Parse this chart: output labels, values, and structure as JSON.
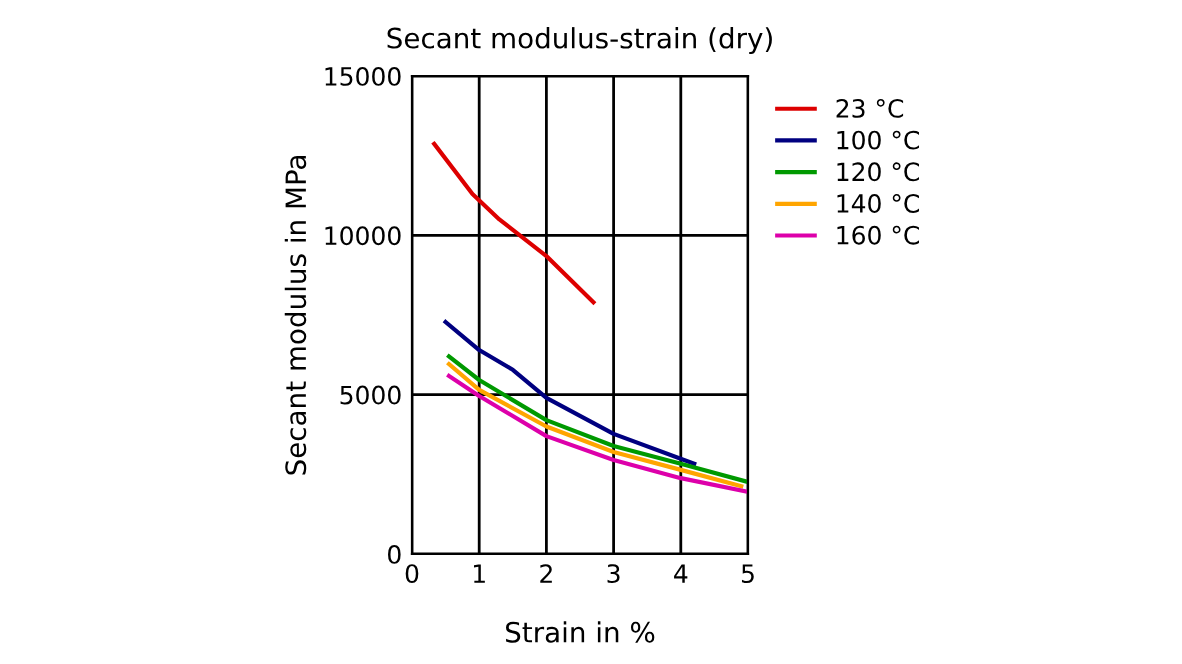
{
  "chart_data": {
    "type": "line",
    "title": "Secant modulus-strain (dry)",
    "xlabel": "Strain in %",
    "ylabel": "Secant modulus in MPa",
    "xlim": [
      0,
      5
    ],
    "ylim": [
      0,
      15000
    ],
    "xticks": [
      0,
      1,
      2,
      3,
      4,
      5
    ],
    "yticks": [
      0,
      5000,
      10000,
      15000
    ],
    "grid": true,
    "legend": "right",
    "marker": "none",
    "line_style": "solid",
    "series": [
      {
        "name": "23 °C",
        "color": "#dd0000",
        "x": [
          0.33,
          0.9,
          1.3,
          2.0,
          2.7
        ],
        "values": [
          12870,
          11300,
          10500,
          9350,
          7900
        ]
      },
      {
        "name": "100 °C",
        "color": "#000080",
        "x": [
          0.5,
          1.0,
          1.5,
          2.0,
          3.0,
          4.2
        ],
        "values": [
          7280,
          6400,
          5780,
          4900,
          3770,
          2830
        ]
      },
      {
        "name": "120 °C",
        "color": "#009900",
        "x": [
          0.55,
          1.0,
          2.0,
          3.0,
          4.0,
          5.0
        ],
        "values": [
          6200,
          5460,
          4200,
          3390,
          2830,
          2260
        ]
      },
      {
        "name": "140 °C",
        "color": "#ffa500",
        "x": [
          0.55,
          1.0,
          2.0,
          3.0,
          4.0,
          4.9
        ],
        "values": [
          5960,
          5150,
          4000,
          3200,
          2640,
          2130
        ]
      },
      {
        "name": "160 °C",
        "color": "#dd00aa",
        "x": [
          0.55,
          1.0,
          2.0,
          3.0,
          4.0,
          5.0
        ],
        "values": [
          5590,
          4960,
          3700,
          2950,
          2380,
          1950
        ]
      }
    ]
  }
}
